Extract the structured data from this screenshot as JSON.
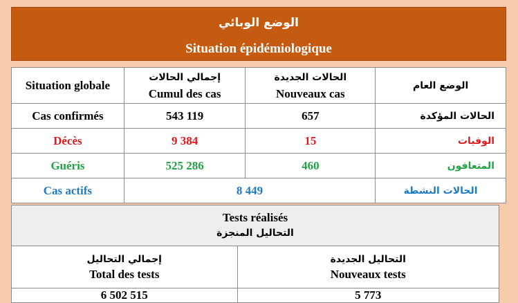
{
  "banner": {
    "title_ar": "الوضع الوبائي",
    "title_fr": "Situation épidémiologique"
  },
  "situation": {
    "header": {
      "global_fr": "Situation globale",
      "cumul_ar": "إجمالي الحالات",
      "cumul_fr": "Cumul des cas",
      "new_ar": "الحالات الجديدة",
      "new_fr": "Nouveaux cas",
      "global_ar": "الوضع العام"
    },
    "rows": [
      {
        "label_fr": "Cas confirmés",
        "cumul": "543 119",
        "new": "657",
        "label_ar": "الحالات المؤكدة",
        "color": "#000000"
      },
      {
        "label_fr": "Décès",
        "cumul": "9 384",
        "new": "15",
        "label_ar": "الوفيات",
        "color": "#e0191b"
      },
      {
        "label_fr": "Guéris",
        "cumul": "525 286",
        "new": "460",
        "label_ar": "المتعافون",
        "color": "#22a246"
      }
    ],
    "active": {
      "label_fr": "Cas actifs",
      "value": "8 449",
      "label_ar": "الحالات النشطة",
      "color": "#1e7bc3"
    }
  },
  "tests": {
    "title_fr": "Tests réalisés",
    "title_ar": "التحاليل المنجزة",
    "total_ar": "إجمالي التحاليل",
    "total_fr": "Total des tests",
    "new_ar": "التحاليل الجديدة",
    "new_fr": "Nouveaux tests",
    "total_value": "6 502 515",
    "new_value": "5 773"
  }
}
